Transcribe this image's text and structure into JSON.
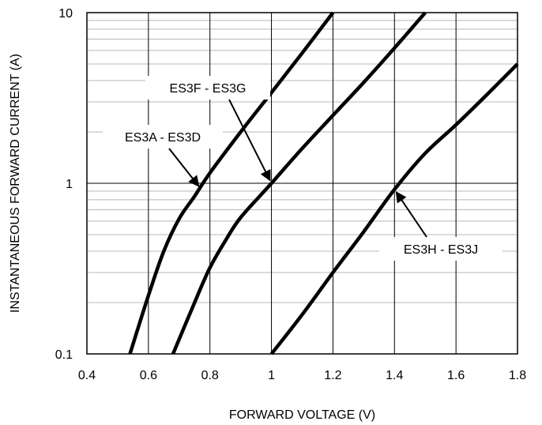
{
  "chart_data": {
    "type": "line",
    "title": "",
    "xlabel": "FORWARD VOLTAGE (V)",
    "ylabel": "INSTANTANEOUS FORWARD CURRENT (A)",
    "x_ticks": [
      "0.4",
      "0.6",
      "0.8",
      "1",
      "1.2",
      "1.4",
      "1.6",
      "1.8"
    ],
    "y_ticks": [
      "0.1",
      "1",
      "10"
    ],
    "xlim": [
      0.4,
      1.8
    ],
    "ylim": [
      0.1,
      10
    ],
    "yscale": "log",
    "grid": true,
    "series": [
      {
        "name": "ES3A - ES3D",
        "x": [
          0.54,
          0.6,
          0.65,
          0.7,
          0.75,
          0.8,
          0.9,
          1.0,
          1.1,
          1.2
        ],
        "y": [
          0.1,
          0.22,
          0.4,
          0.62,
          0.84,
          1.15,
          2.0,
          3.4,
          5.8,
          10.0
        ]
      },
      {
        "name": "ES3F - ES3G",
        "x": [
          0.68,
          0.75,
          0.8,
          0.85,
          0.9,
          1.0,
          1.1,
          1.2,
          1.3,
          1.4,
          1.5
        ],
        "y": [
          0.1,
          0.2,
          0.32,
          0.46,
          0.63,
          1.0,
          1.6,
          2.5,
          3.9,
          6.2,
          10.0
        ]
      },
      {
        "name": "ES3H - ES3J",
        "x": [
          1.0,
          1.1,
          1.2,
          1.3,
          1.4,
          1.5,
          1.6,
          1.7,
          1.8
        ],
        "y": [
          0.1,
          0.17,
          0.3,
          0.52,
          0.92,
          1.5,
          2.2,
          3.3,
          5.0
        ]
      }
    ],
    "annotations": [
      {
        "text": "ES3F - ES3G",
        "series": "ES3F - ES3G",
        "point": [
          1.0,
          1.0
        ]
      },
      {
        "text": "ES3A - ES3D",
        "series": "ES3A - ES3D",
        "point": [
          0.77,
          0.93
        ]
      },
      {
        "text": "ES3H - ES3J",
        "series": "ES3H - ES3J",
        "point": [
          1.4,
          0.92
        ]
      }
    ]
  }
}
